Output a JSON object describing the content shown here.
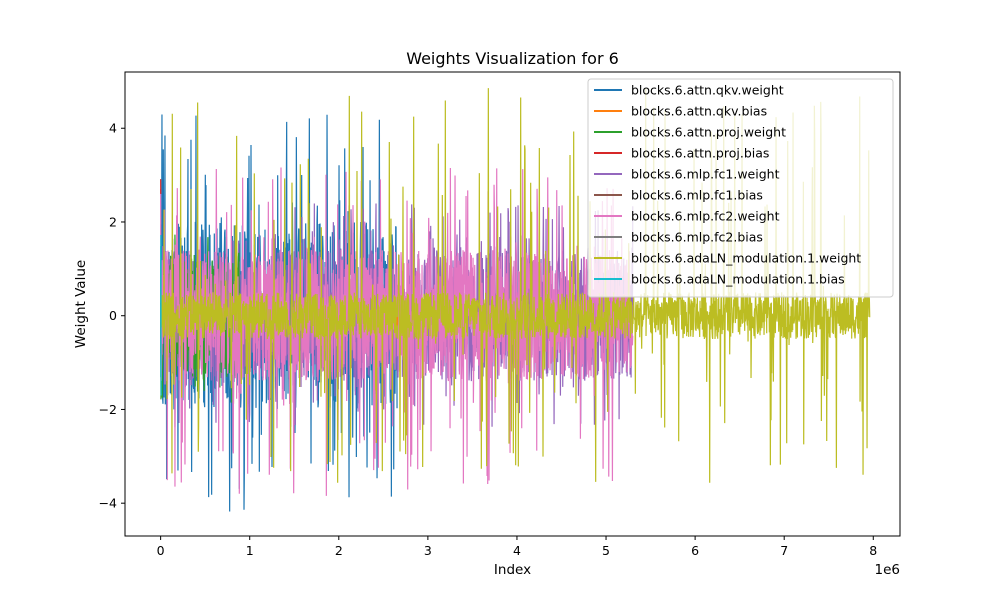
{
  "chart_data": {
    "type": "line",
    "title": "Weights Visualization for 6",
    "xlabel": "Index",
    "ylabel": "Weight Value",
    "x_multiplier_label": "1e6",
    "xlim": [
      -0.4,
      8.3
    ],
    "ylim": [
      -4.7,
      5.2
    ],
    "x_ticks": [
      0,
      1,
      2,
      3,
      4,
      5,
      6,
      7,
      8
    ],
    "x_tick_labels": [
      "0",
      "1",
      "2",
      "3",
      "4",
      "5",
      "6",
      "7",
      "8"
    ],
    "y_ticks": [
      -4,
      -2,
      0,
      2,
      4
    ],
    "y_tick_labels": [
      "−4",
      "−2",
      "0",
      "2",
      "4"
    ],
    "grid": false,
    "legend_position": "top-right",
    "series": [
      {
        "name": "blocks.6.attn.qkv.weight",
        "color": "#1f77b4",
        "x_range": [
          0.0,
          2.654
        ],
        "band": [
          -2.0,
          2.0
        ],
        "extreme": [
          -4.25,
          4.3
        ]
      },
      {
        "name": "blocks.6.attn.qkv.bias",
        "color": "#ff7f0e",
        "x_range": [
          2.654,
          2.658
        ],
        "band": [
          -0.2,
          0.2
        ],
        "extreme": [
          -0.5,
          0.5
        ]
      },
      {
        "name": "blocks.6.attn.proj.weight",
        "color": "#2ca02c",
        "x_range": [
          0.0,
          0.885
        ],
        "band": [
          -1.3,
          1.3
        ],
        "extreme": [
          -1.9,
          1.9
        ]
      },
      {
        "name": "blocks.6.attn.proj.bias",
        "color": "#d62728",
        "x_range": [
          0.0,
          0.002
        ],
        "band": [
          2.6,
          3.0
        ],
        "extreme": [
          2.6,
          3.0
        ]
      },
      {
        "name": "blocks.6.mlp.fc1.weight",
        "color": "#9467bd",
        "x_range": [
          0.0,
          5.3
        ],
        "band": [
          -1.4,
          1.4
        ],
        "extreme": [
          -2.4,
          2.4
        ]
      },
      {
        "name": "blocks.6.mlp.fc1.bias",
        "color": "#8c564b",
        "x_range": [
          0.0,
          0.004
        ],
        "band": [
          -0.5,
          0.5
        ],
        "extreme": [
          -0.6,
          0.6
        ]
      },
      {
        "name": "blocks.6.mlp.fc2.weight",
        "color": "#e377c2",
        "x_range": [
          0.0,
          5.3
        ],
        "band": [
          -1.4,
          1.4
        ],
        "extreme": [
          -3.9,
          3.2
        ]
      },
      {
        "name": "blocks.6.mlp.fc2.bias",
        "color": "#7f7f7f",
        "x_range": [
          0.0,
          0.001
        ],
        "band": [
          -0.3,
          0.3
        ],
        "extreme": [
          -0.3,
          0.3
        ]
      },
      {
        "name": "blocks.6.adaLN_modulation.1.weight",
        "color": "#bcbd22",
        "x_range": [
          0.0,
          7.96
        ],
        "band": [
          -0.5,
          0.5
        ],
        "extreme": [
          -3.6,
          5.0
        ]
      },
      {
        "name": "blocks.6.adaLN_modulation.1.bias",
        "color": "#17becf",
        "x_range": [
          0.0,
          0.005
        ],
        "band": [
          -2.0,
          2.0
        ],
        "extreme": [
          -2.2,
          2.2
        ]
      }
    ]
  }
}
